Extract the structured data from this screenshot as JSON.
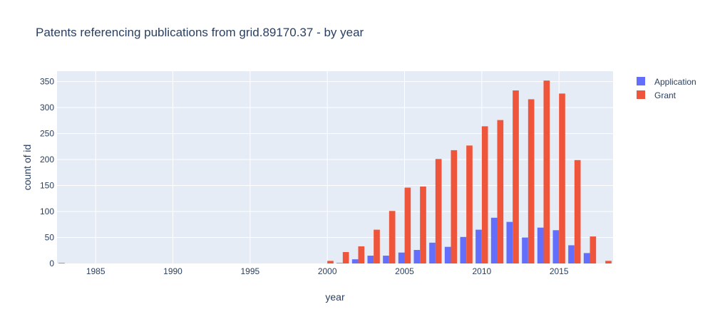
{
  "colors": {
    "plot_bg": "#e5ecf6",
    "grid": "#ffffff",
    "text": "#2a3f5f"
  },
  "chart_data": {
    "type": "bar",
    "barmode": "group",
    "title": "Patents referencing publications from grid.89170.37 - by year",
    "xlabel": "year",
    "ylabel": "count of id",
    "xlim": [
      1982.5,
      2018.5
    ],
    "ylim": [
      0,
      370
    ],
    "xticks": [
      1985,
      1990,
      1995,
      2000,
      2005,
      2010,
      2015
    ],
    "yticks": [
      0,
      50,
      100,
      150,
      200,
      250,
      300,
      350
    ],
    "grid": true,
    "legend_position": "top-right",
    "series": [
      {
        "name": "Application",
        "color": "#636efa",
        "x": [
          1983,
          2001,
          2002,
          2003,
          2004,
          2005,
          2006,
          2007,
          2008,
          2009,
          2010,
          2011,
          2012,
          2013,
          2014,
          2015,
          2016,
          2017
        ],
        "values": [
          1,
          1,
          8,
          15,
          15,
          21,
          26,
          40,
          32,
          51,
          65,
          88,
          80,
          50,
          69,
          64,
          35,
          20
        ]
      },
      {
        "name": "Grant",
        "color": "#ef553b",
        "x": [
          2000,
          2001,
          2002,
          2003,
          2004,
          2005,
          2006,
          2007,
          2008,
          2009,
          2010,
          2011,
          2012,
          2013,
          2014,
          2015,
          2016,
          2017,
          2018
        ],
        "values": [
          5,
          22,
          33,
          65,
          101,
          146,
          148,
          201,
          218,
          227,
          264,
          276,
          333,
          316,
          352,
          327,
          199,
          52,
          5
        ]
      }
    ]
  }
}
